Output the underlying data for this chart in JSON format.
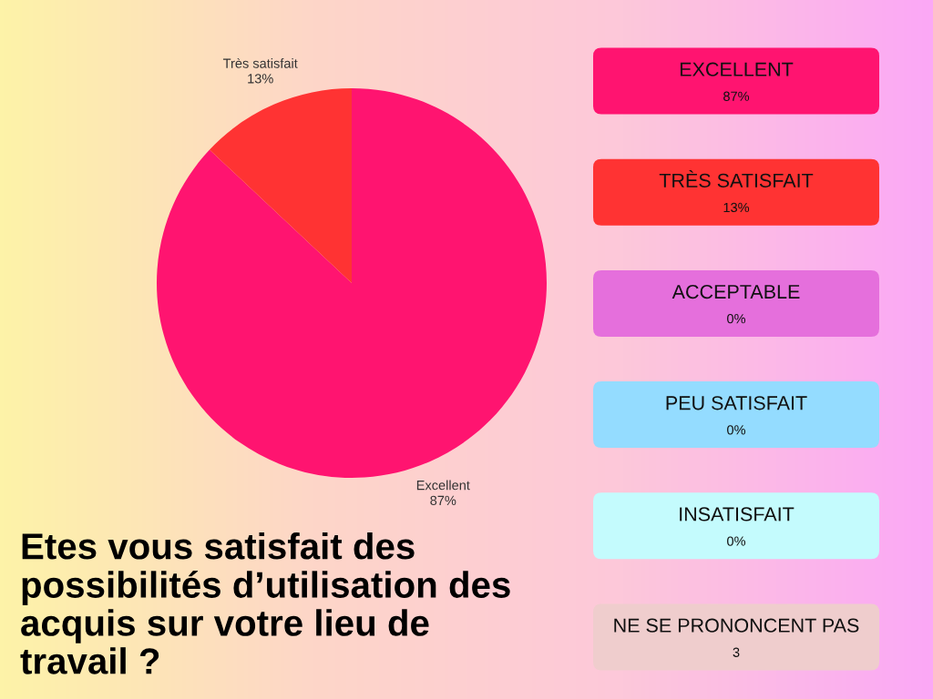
{
  "chart_data": [
    {
      "type": "pie",
      "title": "Etes vous satisfait des possibilités d’utilisation des acquis sur votre lieu de travail ?",
      "categories": [
        "Excellent",
        "Très satisfait"
      ],
      "values": [
        87,
        13
      ],
      "value_labels": [
        "87%",
        "13%"
      ],
      "colors": [
        "#ff1470",
        "#ff3333"
      ]
    },
    {
      "type": "other",
      "categories": [
        "EXCELLENT",
        "TRÈS SATISFAIT",
        "ACCEPTABLE",
        "PEU SATISFAIT",
        "INSATISFAIT",
        "NE SE PRONONCENT PAS"
      ],
      "value_labels": [
        "87%",
        "13%",
        "0%",
        "0%",
        "0%",
        "3"
      ],
      "colors": [
        "#ff1470",
        "#ff3333",
        "#e56fdc",
        "#94dcff",
        "#c4fbfd",
        "#efcdcd"
      ]
    }
  ]
}
